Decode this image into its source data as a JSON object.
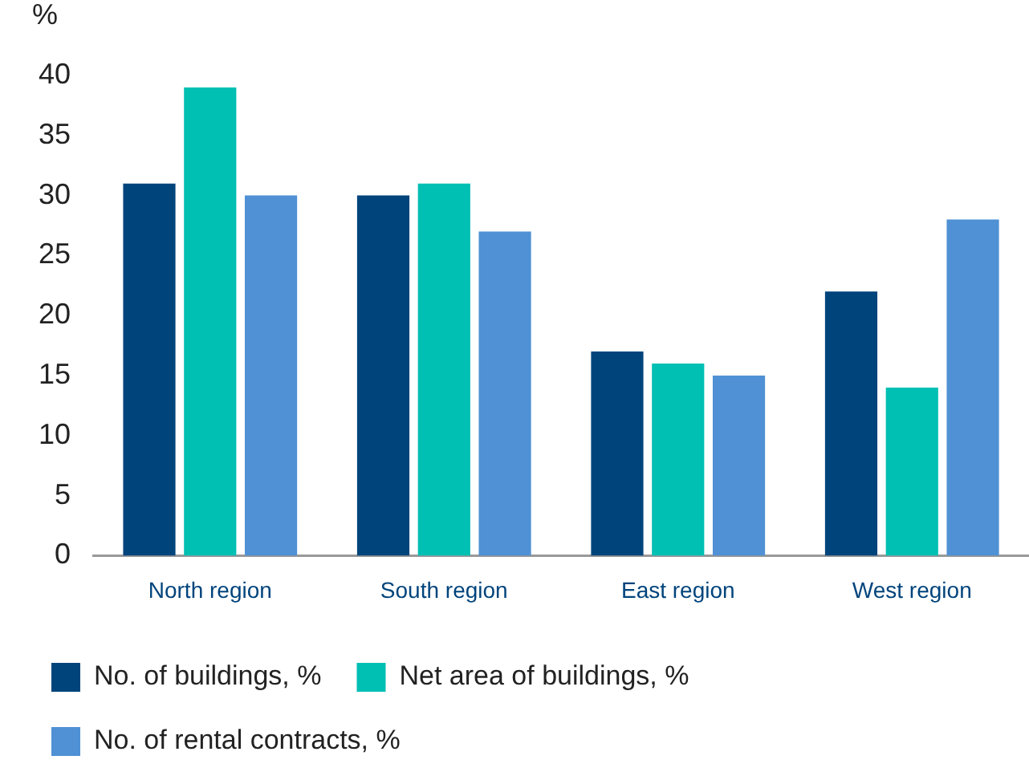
{
  "chart_data": {
    "type": "bar",
    "ylabel": "%",
    "categories": [
      "North region",
      "South region",
      "East region",
      "West region"
    ],
    "series": [
      {
        "name": "No. of buildings, %",
        "color": "#00447c",
        "values": [
          31,
          30,
          17,
          22
        ]
      },
      {
        "name": "Net area of buildings, %",
        "color": "#00bfb3",
        "values": [
          39,
          31,
          16,
          14
        ]
      },
      {
        "name": "No. of rental contracts, %",
        "color": "#4f91d4",
        "values": [
          30,
          27,
          15,
          28
        ]
      }
    ],
    "ylim": [
      0,
      40
    ],
    "yticks": [
      0,
      5,
      10,
      15,
      20,
      25,
      30,
      35,
      40
    ],
    "grid": false,
    "legend": "bottom"
  }
}
